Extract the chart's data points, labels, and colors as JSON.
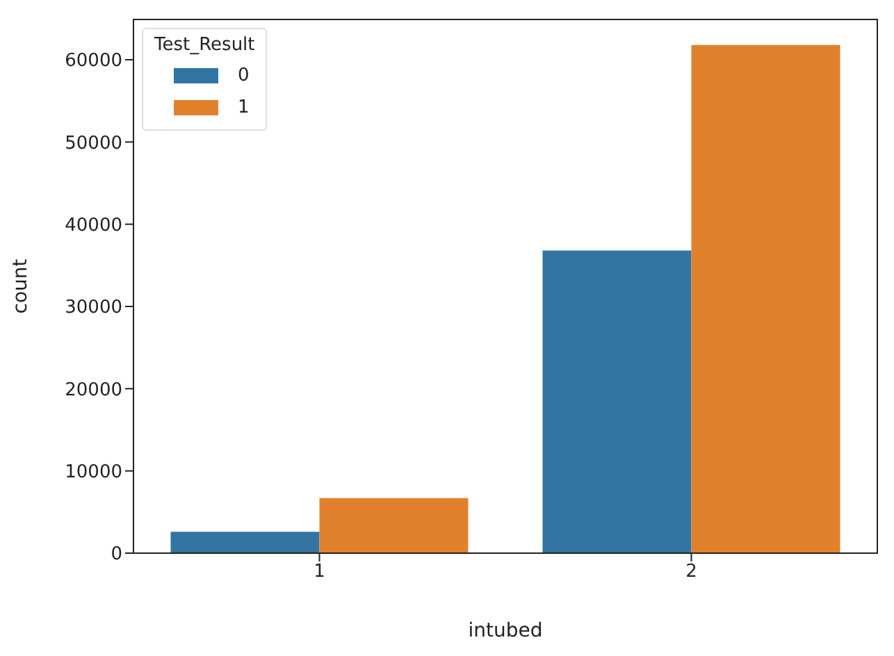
{
  "chart_data": {
    "type": "bar",
    "xlabel": "intubed",
    "ylabel": "count",
    "legend_title": "Test_Result",
    "categories": [
      "1",
      "2"
    ],
    "series": [
      {
        "name": "0",
        "color": "#3274a1",
        "values": [
          2600,
          36800
        ]
      },
      {
        "name": "1",
        "color": "#e1812c",
        "values": [
          6700,
          61800
        ]
      }
    ],
    "ylim": [
      0,
      64900
    ],
    "yticks": [
      0,
      10000,
      20000,
      30000,
      40000,
      50000,
      60000
    ],
    "legend": "top left"
  }
}
